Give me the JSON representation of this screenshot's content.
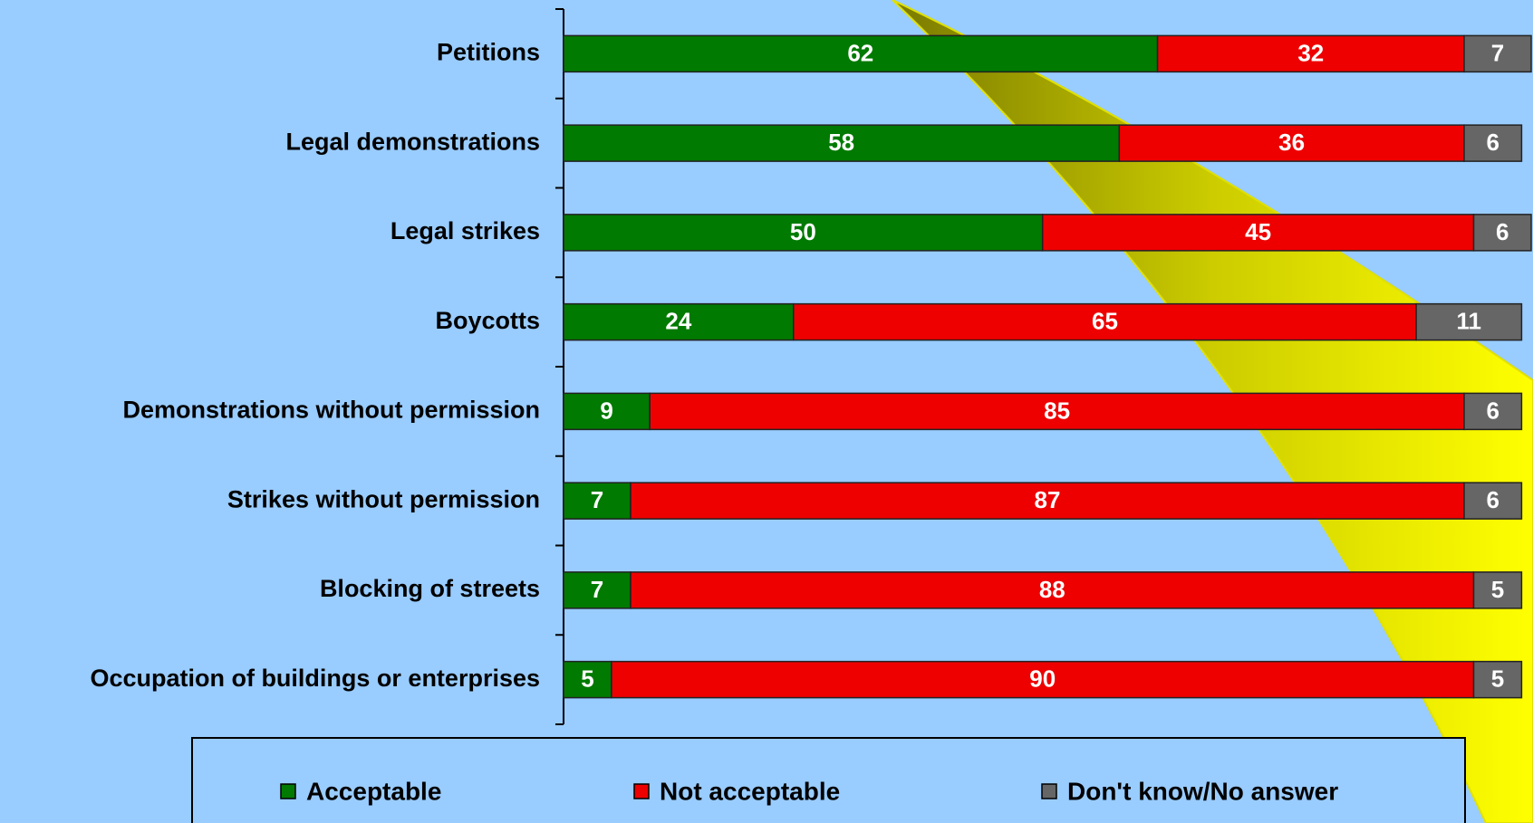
{
  "chart_data": {
    "type": "stacked-bar-horizontal",
    "categories": [
      "Petitions",
      "Legal demonstrations",
      "Legal strikes",
      "Boycotts",
      "Demonstrations without permission",
      "Strikes without permission",
      "Blocking of streets",
      "Occupation of buildings or enterprises"
    ],
    "series": [
      {
        "name": "Acceptable",
        "color": "#007a00",
        "values": [
          62,
          58,
          50,
          24,
          9,
          7,
          7,
          5
        ]
      },
      {
        "name": "Not acceptable",
        "color": "#ee0000",
        "values": [
          32,
          36,
          45,
          65,
          85,
          87,
          88,
          90
        ]
      },
      {
        "name": "Don't know/No answer",
        "color": "#666666",
        "values": [
          7,
          6,
          6,
          11,
          6,
          6,
          5,
          5
        ]
      }
    ],
    "legend": "bottom"
  }
}
